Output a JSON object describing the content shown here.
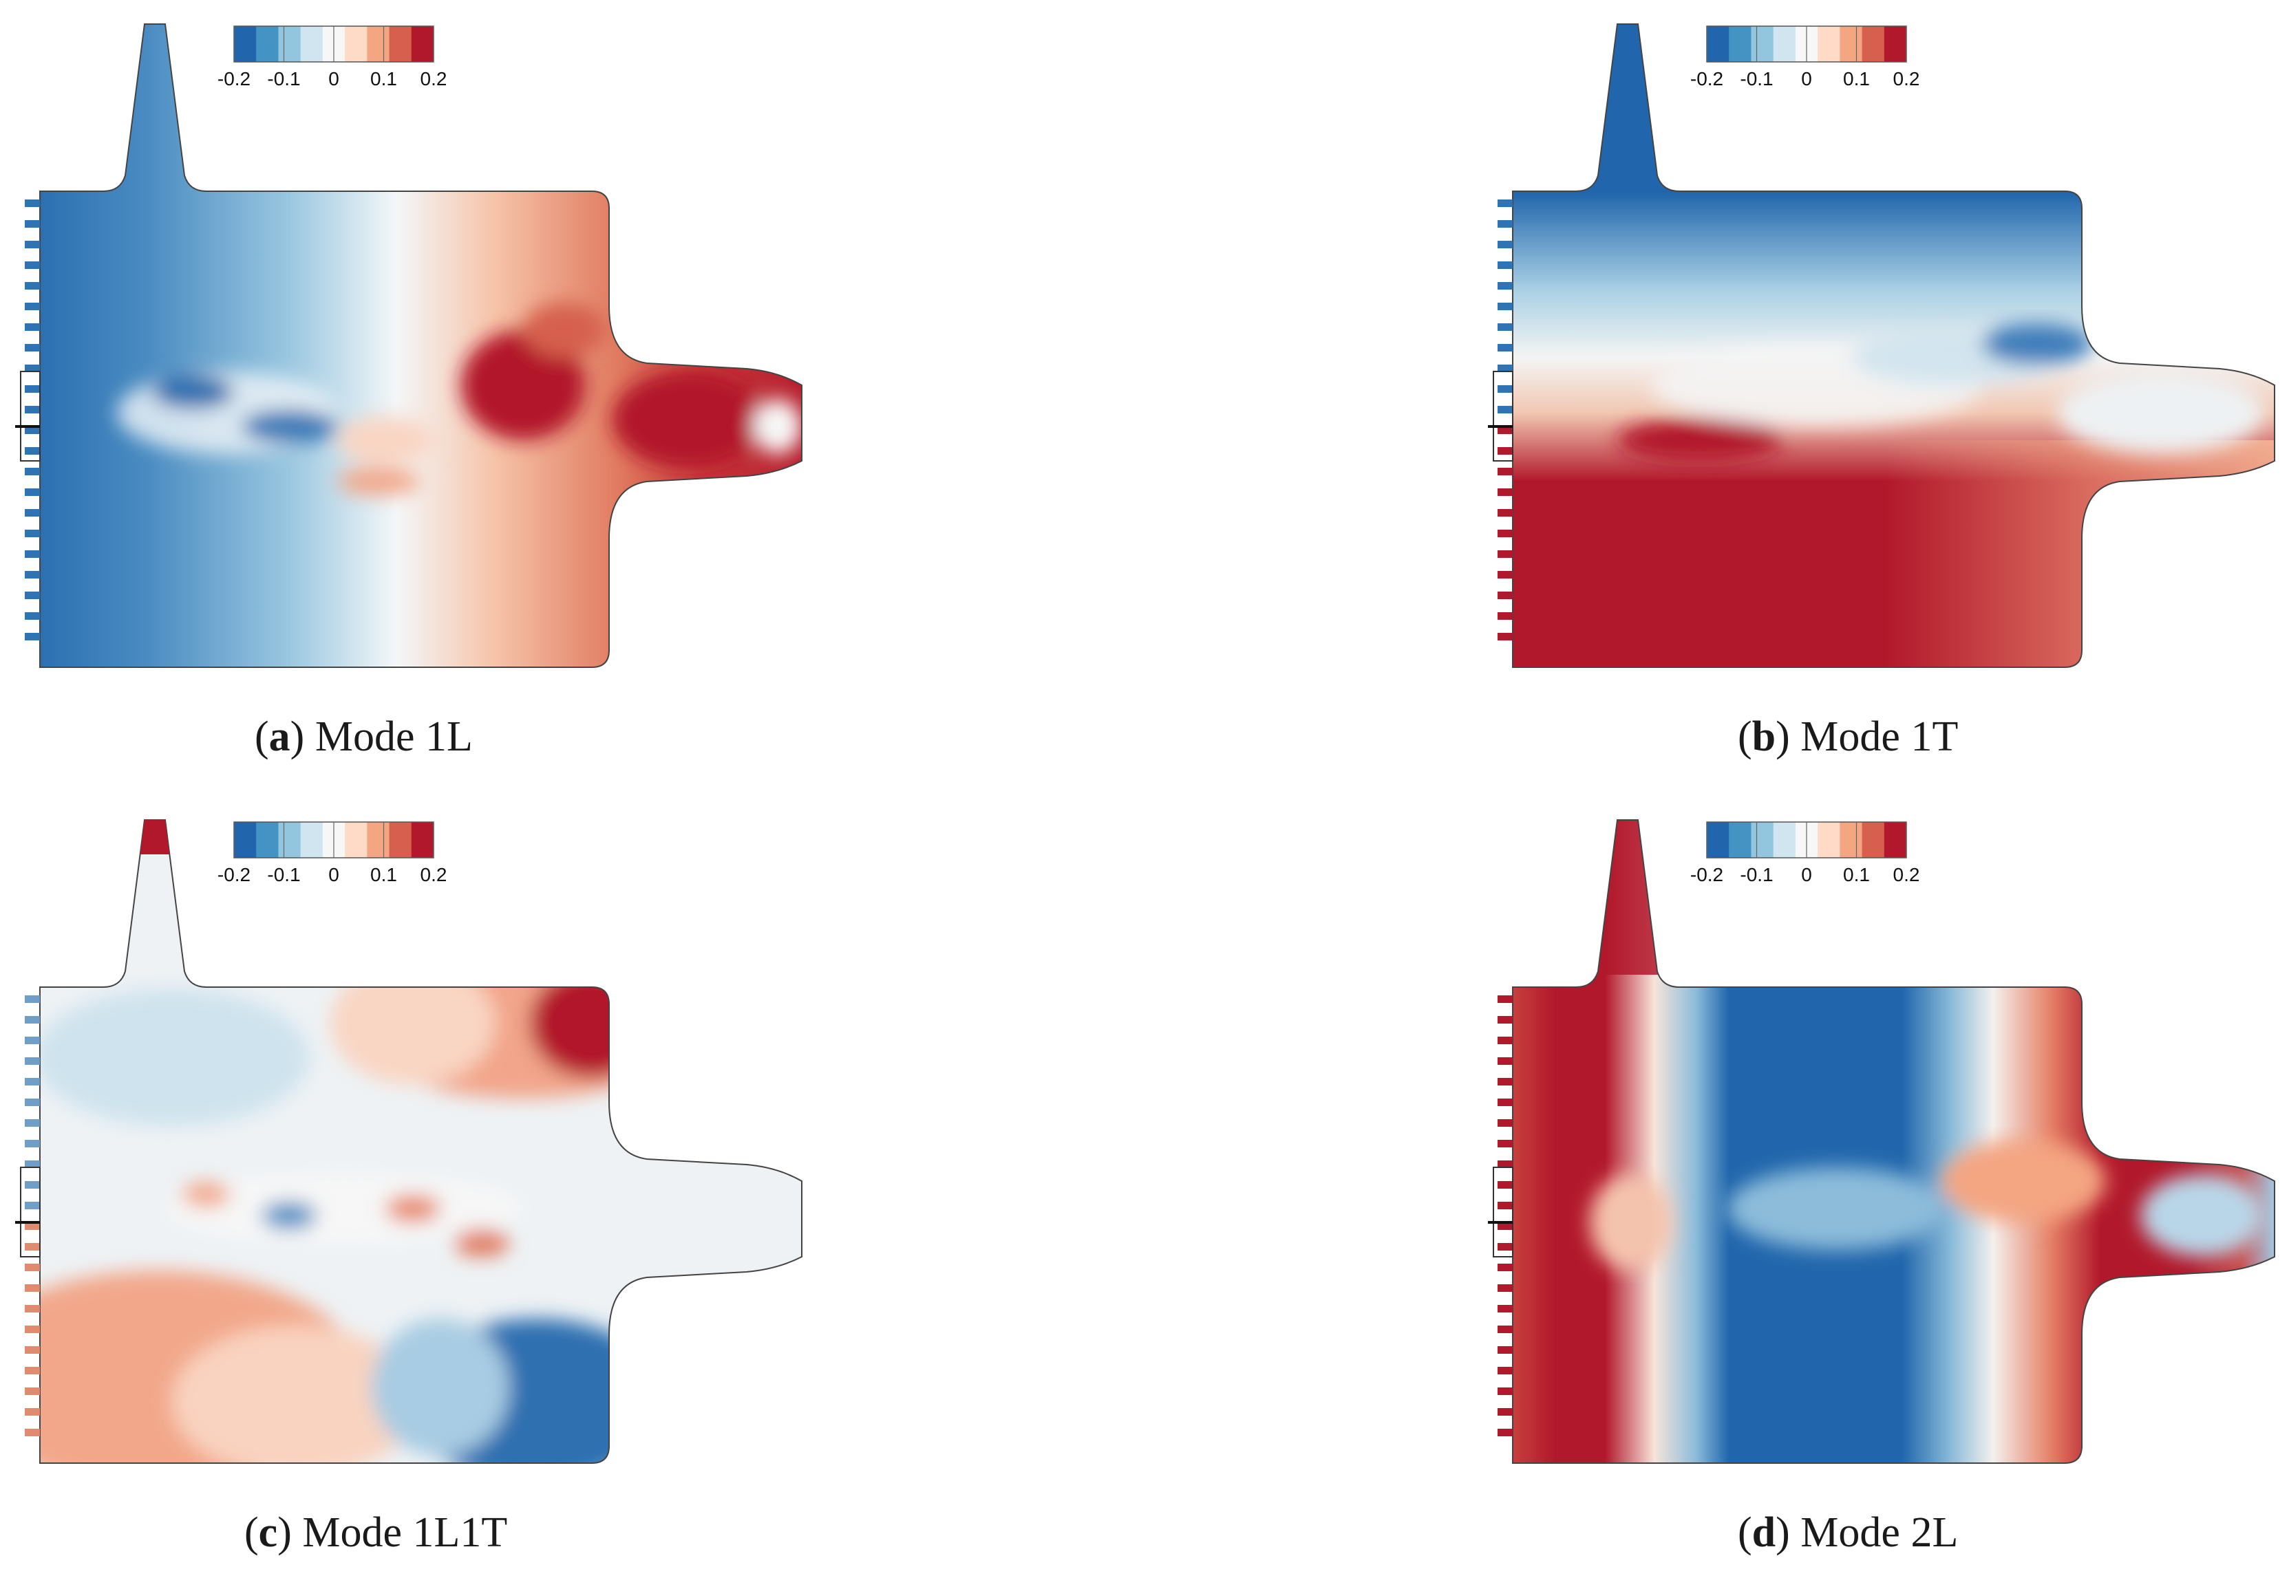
{
  "colorbar": {
    "ticks": [
      "-0.2",
      "-0.1",
      "0",
      "0.1",
      "0.2"
    ],
    "colors": [
      "#2166ac",
      "#4393c3",
      "#92c5de",
      "#d1e5f0",
      "#f7f7f7",
      "#fddbc7",
      "#f4a582",
      "#d6604d",
      "#b2182b"
    ]
  },
  "panels": [
    {
      "letter": "a",
      "caption": "Mode 1L"
    },
    {
      "letter": "b",
      "caption": "Mode 1T"
    },
    {
      "letter": "c",
      "caption": "Mode 1L1T"
    },
    {
      "letter": "d",
      "caption": "Mode 2L"
    }
  ]
}
